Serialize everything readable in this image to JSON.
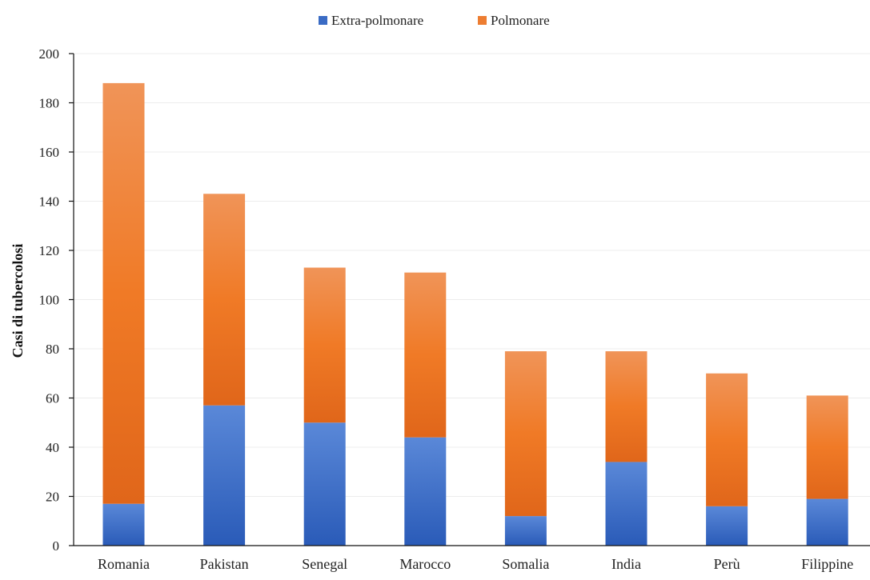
{
  "chart_data": {
    "type": "bar",
    "stacked": true,
    "title": "",
    "xlabel": "",
    "ylabel": "Casi di tubercolosi",
    "ylim": [
      0,
      200
    ],
    "yticks": [
      0,
      20,
      40,
      60,
      80,
      100,
      120,
      140,
      160,
      180,
      200
    ],
    "grid": true,
    "legend_position": "top-center",
    "categories": [
      "Romania",
      "Pakistan",
      "Senegal",
      "Marocco",
      "Somalia",
      "India",
      "Perù",
      "Filippine"
    ],
    "series": [
      {
        "name": "Extra-polmonare",
        "color": "#3a6bc4",
        "values": [
          17,
          57,
          50,
          44,
          12,
          34,
          16,
          19
        ]
      },
      {
        "name": "Polmonare",
        "color": "#ed7d31",
        "values": [
          171,
          86,
          63,
          67,
          67,
          45,
          54,
          42
        ]
      }
    ]
  }
}
